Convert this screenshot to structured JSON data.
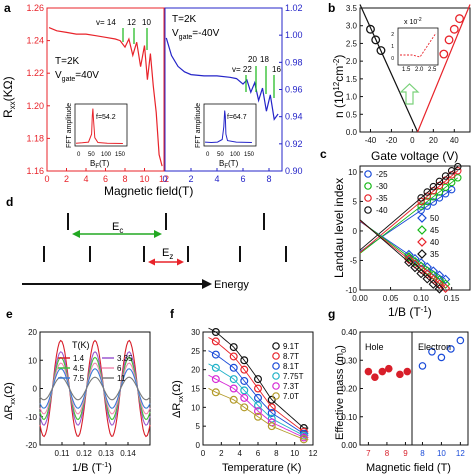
{
  "figure": {
    "panel_letters": [
      "a",
      "b",
      "c",
      "d",
      "e",
      "f",
      "g"
    ]
  },
  "chart_data": [
    {
      "id": "a-left",
      "type": "line",
      "xlabel": "",
      "ylabel": "R_xx(KΩ)",
      "ylim": [
        1.16,
        1.26
      ],
      "xlim": [
        0,
        12
      ],
      "yticks": [
        "1.16",
        "1.18",
        "1.20",
        "1.22",
        "1.24",
        "1.26"
      ],
      "xticks": [
        "0",
        "2",
        "4",
        "6",
        "8",
        "10",
        "12"
      ],
      "color": "#e8232a",
      "annotations": [
        "T=2K",
        "V_gate=40V",
        "v= 14",
        "12",
        "10"
      ],
      "series": [
        {
          "x": [
            0.2,
            1,
            2,
            3,
            4,
            5,
            6,
            7,
            7.5,
            8,
            8.4,
            8.8,
            9.2,
            9.6,
            10,
            10.3,
            10.6,
            10.9,
            11.2,
            11.5,
            11.8
          ],
          "values": [
            1.248,
            1.246,
            1.245,
            1.244,
            1.244,
            1.243,
            1.242,
            1.241,
            1.24,
            1.236,
            1.241,
            1.231,
            1.239,
            1.224,
            1.237,
            1.216,
            1.232,
            1.212,
            1.196,
            1.17,
            1.163
          ]
        }
      ],
      "inset": {
        "xlabel": "B_F(T)",
        "ylabel": "FFT amplitude",
        "xticks": [
          "0",
          "50",
          "100",
          "150"
        ],
        "peak_label": "f=54.2",
        "x": [
          0,
          20,
          40,
          50,
          52,
          54,
          56,
          60,
          70,
          100,
          150
        ],
        "values": [
          0.05,
          0.06,
          0.08,
          0.3,
          0.8,
          1.0,
          0.7,
          0.2,
          0.07,
          0.05,
          0.04
        ]
      }
    },
    {
      "id": "a-right",
      "type": "line",
      "xlabel": "",
      "ylabel": "",
      "ylim": [
        0.9,
        1.02
      ],
      "xlim": [
        0,
        9
      ],
      "yticks": [
        "0.90",
        "0.92",
        "0.94",
        "0.96",
        "0.98",
        "1.00",
        "1.02"
      ],
      "xticks": [
        "0",
        "2",
        "4",
        "6",
        "8"
      ],
      "color": "#2424c8",
      "annotations": [
        "T=2K",
        "V_gate=-40V",
        "v= 22",
        "20",
        "18",
        "16"
      ],
      "series": [
        {
          "x": [
            0.1,
            0.5,
            1,
            1.5,
            2,
            3,
            4,
            5,
            5.5,
            6,
            6.3,
            6.6,
            6.9,
            7.2,
            7.5,
            7.8,
            8.1,
            8.4,
            8.7
          ],
          "values": [
            0.998,
            0.985,
            0.977,
            0.973,
            0.971,
            0.97,
            0.97,
            0.969,
            0.968,
            0.964,
            0.967,
            0.958,
            0.965,
            0.952,
            0.961,
            0.944,
            0.956,
            0.938,
            0.942
          ]
        }
      ],
      "inset": {
        "xlabel": "B_F(T)",
        "ylabel": "FFT amplitude",
        "xticks": [
          "0",
          "50",
          "100",
          "150"
        ],
        "peak_label": "f=64.7",
        "x": [
          0,
          20,
          40,
          55,
          60,
          63,
          65,
          67,
          72,
          100,
          150
        ],
        "values": [
          0.08,
          0.07,
          0.08,
          0.15,
          0.5,
          0.95,
          0.8,
          0.3,
          0.12,
          0.08,
          0.07
        ]
      }
    },
    {
      "id": "b",
      "type": "scatter",
      "xlabel": "Gate voltage (V)",
      "ylabel": "n (10^12 cm^-2)",
      "xlim": [
        -50,
        55
      ],
      "ylim": [
        0,
        3.5
      ],
      "xticks": [
        "-40",
        "-20",
        "0",
        "20",
        "40"
      ],
      "yticks": [
        "0.0",
        "0.5",
        "1.0",
        "1.5",
        "2.0",
        "2.5",
        "3.0",
        "3.5"
      ],
      "series": [
        {
          "color": "#111111",
          "x": [
            -40,
            -35,
            -30
          ],
          "values": [
            2.9,
            2.6,
            2.3
          ]
        },
        {
          "color": "#e8232a",
          "x": [
            30,
            35,
            40,
            45
          ],
          "values": [
            2.2,
            2.6,
            2.9,
            3.2
          ]
        }
      ],
      "lines": [
        {
          "color": "#111111",
          "x": [
            -50,
            5
          ],
          "values": [
            3.6,
            0
          ]
        },
        {
          "color": "#e8232a",
          "x": [
            5,
            55
          ],
          "values": [
            0,
            3.6
          ]
        }
      ],
      "inset": {
        "label": "x 10^-2",
        "xticks": [
          "1.5",
          "2.0",
          "2.5"
        ],
        "yticks": [
          "0",
          "1",
          "2"
        ]
      }
    },
    {
      "id": "c",
      "type": "scatter",
      "xlabel": "1/B (T^-1)",
      "ylabel": "Landau level index",
      "xlim": [
        0,
        0.18
      ],
      "ylim": [
        -10,
        11
      ],
      "xticks": [
        "0.00",
        "0.05",
        "0.10",
        "0.15"
      ],
      "yticks": [
        "-10",
        "-5",
        "0",
        "5",
        "10"
      ],
      "series": [
        {
          "name": "-25",
          "color": "#1a4bd8",
          "x": [
            0.1,
            0.11,
            0.12,
            0.13,
            0.14,
            0.15
          ],
          "values": [
            3.5,
            4.2,
            4.9,
            5.6,
            6.3,
            7.0
          ]
        },
        {
          "name": "-30",
          "color": "#16b816",
          "x": [
            0.1,
            0.11,
            0.12,
            0.13,
            0.14,
            0.15,
            0.16
          ],
          "values": [
            4.2,
            5.0,
            5.8,
            6.6,
            7.4,
            8.2,
            9.0
          ]
        },
        {
          "name": "-35",
          "color": "#e8232a",
          "x": [
            0.1,
            0.11,
            0.12,
            0.13,
            0.14,
            0.15,
            0.16
          ],
          "values": [
            5.0,
            5.9,
            6.8,
            7.7,
            8.6,
            9.5,
            10.2
          ]
        },
        {
          "name": "-40",
          "color": "#111111",
          "x": [
            0.1,
            0.11,
            0.12,
            0.13,
            0.14,
            0.15,
            0.16
          ],
          "values": [
            5.6,
            6.6,
            7.5,
            8.4,
            9.3,
            10.2,
            10.9
          ]
        },
        {
          "name": "50",
          "color": "#1a4bd8",
          "x": [
            0.08,
            0.09,
            0.1,
            0.11,
            0.12,
            0.13,
            0.14
          ],
          "values": [
            -4.0,
            -4.7,
            -5.4,
            -6.1,
            -6.8,
            -7.5,
            -8.2
          ]
        },
        {
          "name": "45",
          "color": "#16b816",
          "x": [
            0.08,
            0.09,
            0.1,
            0.11,
            0.12,
            0.13,
            0.14
          ],
          "values": [
            -4.4,
            -5.2,
            -6.0,
            -6.8,
            -7.5,
            -8.3,
            -9.0
          ]
        },
        {
          "name": "40",
          "color": "#e8232a",
          "x": [
            0.08,
            0.09,
            0.1,
            0.11,
            0.12,
            0.13,
            0.14
          ],
          "values": [
            -4.8,
            -5.6,
            -6.5,
            -7.3,
            -8.2,
            -9.0,
            -9.7
          ]
        },
        {
          "name": "35",
          "color": "#111111",
          "x": [
            0.08,
            0.09,
            0.1,
            0.11,
            0.12,
            0.13
          ],
          "values": [
            -5.3,
            -6.2,
            -7.2,
            -8.1,
            -9.0,
            -9.8
          ]
        }
      ]
    },
    {
      "id": "d",
      "type": "diagram",
      "labels": {
        "ec": "E",
        "ec_sub": "c",
        "ez": "E",
        "ez_sub": "z",
        "axis": "Energy"
      }
    },
    {
      "id": "e",
      "type": "line",
      "xlabel": "1/B (T^-1)",
      "ylabel": "ΔR_xx(Ω)",
      "legend_title": "T(K)",
      "xlim": [
        0.1,
        0.15
      ],
      "ylim": [
        -20,
        20
      ],
      "xticks": [
        "0.11",
        "0.12",
        "0.13",
        "0.14"
      ],
      "yticks": [
        "-20",
        "-10",
        "0",
        "10",
        "20"
      ],
      "series": [
        {
          "name": "1.4",
          "color": "#d81f2a",
          "amp": 17
        },
        {
          "name": "3.35",
          "color": "#9b59d0",
          "amp": 13
        },
        {
          "name": "4.5",
          "color": "#41c13a",
          "amp": 11
        },
        {
          "name": "6",
          "color": "#f08ab0",
          "amp": 9
        },
        {
          "name": "7.5",
          "color": "#3a7bd5",
          "amp": 7
        },
        {
          "name": "11",
          "color": "#7a7a7a",
          "amp": 4
        }
      ]
    },
    {
      "id": "f",
      "type": "scatter",
      "xlabel": "Temperature (K)",
      "ylabel": "ΔR_xx(Ω)",
      "xlim": [
        0,
        12
      ],
      "ylim": [
        0,
        30
      ],
      "xticks": [
        "0",
        "2",
        "4",
        "6",
        "8",
        "10",
        "12"
      ],
      "yticks": [
        "0",
        "5",
        "10",
        "15",
        "20",
        "25",
        "30"
      ],
      "x": [
        1.4,
        3.35,
        4.5,
        6,
        7.5,
        11
      ],
      "series": [
        {
          "name": "9.1T",
          "color": "#111111",
          "values": [
            30.0,
            26.0,
            22.5,
            17.5,
            12.0,
            4.5
          ]
        },
        {
          "name": "8.7T",
          "color": "#e8232a",
          "values": [
            27.5,
            23.5,
            20.0,
            15.0,
            10.0,
            3.5
          ]
        },
        {
          "name": "8.1T",
          "color": "#1a4bd8",
          "values": [
            24.0,
            20.5,
            17.0,
            12.5,
            8.5,
            3.0
          ]
        },
        {
          "name": "7.75T",
          "color": "#20b2c8",
          "values": [
            20.5,
            17.5,
            14.5,
            10.5,
            7.0,
            2.5
          ]
        },
        {
          "name": "7.3T",
          "color": "#d62ad6",
          "values": [
            17.5,
            15.0,
            12.5,
            9.0,
            6.0,
            2.0
          ]
        },
        {
          "name": "7.0T",
          "color": "#b39b2a",
          "values": [
            14.0,
            12.0,
            10.0,
            7.5,
            5.0,
            1.5
          ]
        }
      ]
    },
    {
      "id": "g",
      "type": "scatter",
      "xlabel": "Magnetic field (T)",
      "ylabel": "Effective mass (m_0)",
      "ylim": [
        0,
        0.4
      ],
      "yticks": [
        "0.00",
        "0.10",
        "0.20",
        "0.30",
        "0.40"
      ],
      "groups": [
        {
          "label": "Hole",
          "color": "#d81f2a",
          "xticks": [
            "7",
            "8",
            "9"
          ],
          "xlim": [
            6.6,
            9.3
          ],
          "x": [
            7.0,
            7.35,
            7.75,
            8.1,
            8.7,
            9.1
          ],
          "values": [
            0.26,
            0.24,
            0.26,
            0.27,
            0.25,
            0.26
          ],
          "filled": true
        },
        {
          "label": "Electron",
          "color": "#1a4bd8",
          "xticks": [
            "8",
            "10",
            "12"
          ],
          "xlim": [
            7.0,
            12.7
          ],
          "x": [
            8.0,
            9.0,
            10.0,
            11.0,
            12.0
          ],
          "values": [
            0.28,
            0.33,
            0.31,
            0.34,
            0.37
          ],
          "filled": false
        }
      ]
    }
  ],
  "labels": {
    "a_xlabel": "Magnetic field(T)",
    "a_ylabel_main": "R",
    "a_ylabel_sub": "xx",
    "a_ylabel_unit": "(KΩ)",
    "a_T": "T=2K",
    "a_V": "V",
    "a_V_sub": "gate",
    "a_V_left": "=40V",
    "a_V_right": "=-40V",
    "a_nu_left": "v= 14",
    "a_nu_left_2": "12",
    "a_nu_left_3": "10",
    "a_nu_right": "v= 22",
    "a_nu_right_2": "20",
    "a_nu_right_3": "18",
    "a_nu_right_4": "16",
    "inset_ylabel": "FFT amplitude",
    "inset_x": "B",
    "inset_x_sub": "F",
    "inset_x_unit": "(T)",
    "b_ylabel": "n (10",
    "b_ylabel_sup": "12",
    "b_ylabel_end": "cm",
    "b_ylabel_end_sup": "-2",
    "b_ylabel_close": ")",
    "b_inset_label": "x 10",
    "b_inset_sup": "-2",
    "c_ylabel": "Landau level index",
    "c_xlabel": "1/B (T",
    "c_xlabel_sup": "-1",
    "c_xlabel_close": ")",
    "e_ylabel": "ΔR",
    "e_ylabel_sub": "xx",
    "e_ylabel_unit": "(Ω)",
    "f_ylabel": "ΔR",
    "f_ylabel_sub": "xx",
    "f_ylabel_unit": "(Ω)",
    "g_ylabel": "Effective mass (m",
    "g_ylabel_sub": "0",
    "g_ylabel_close": ")"
  }
}
